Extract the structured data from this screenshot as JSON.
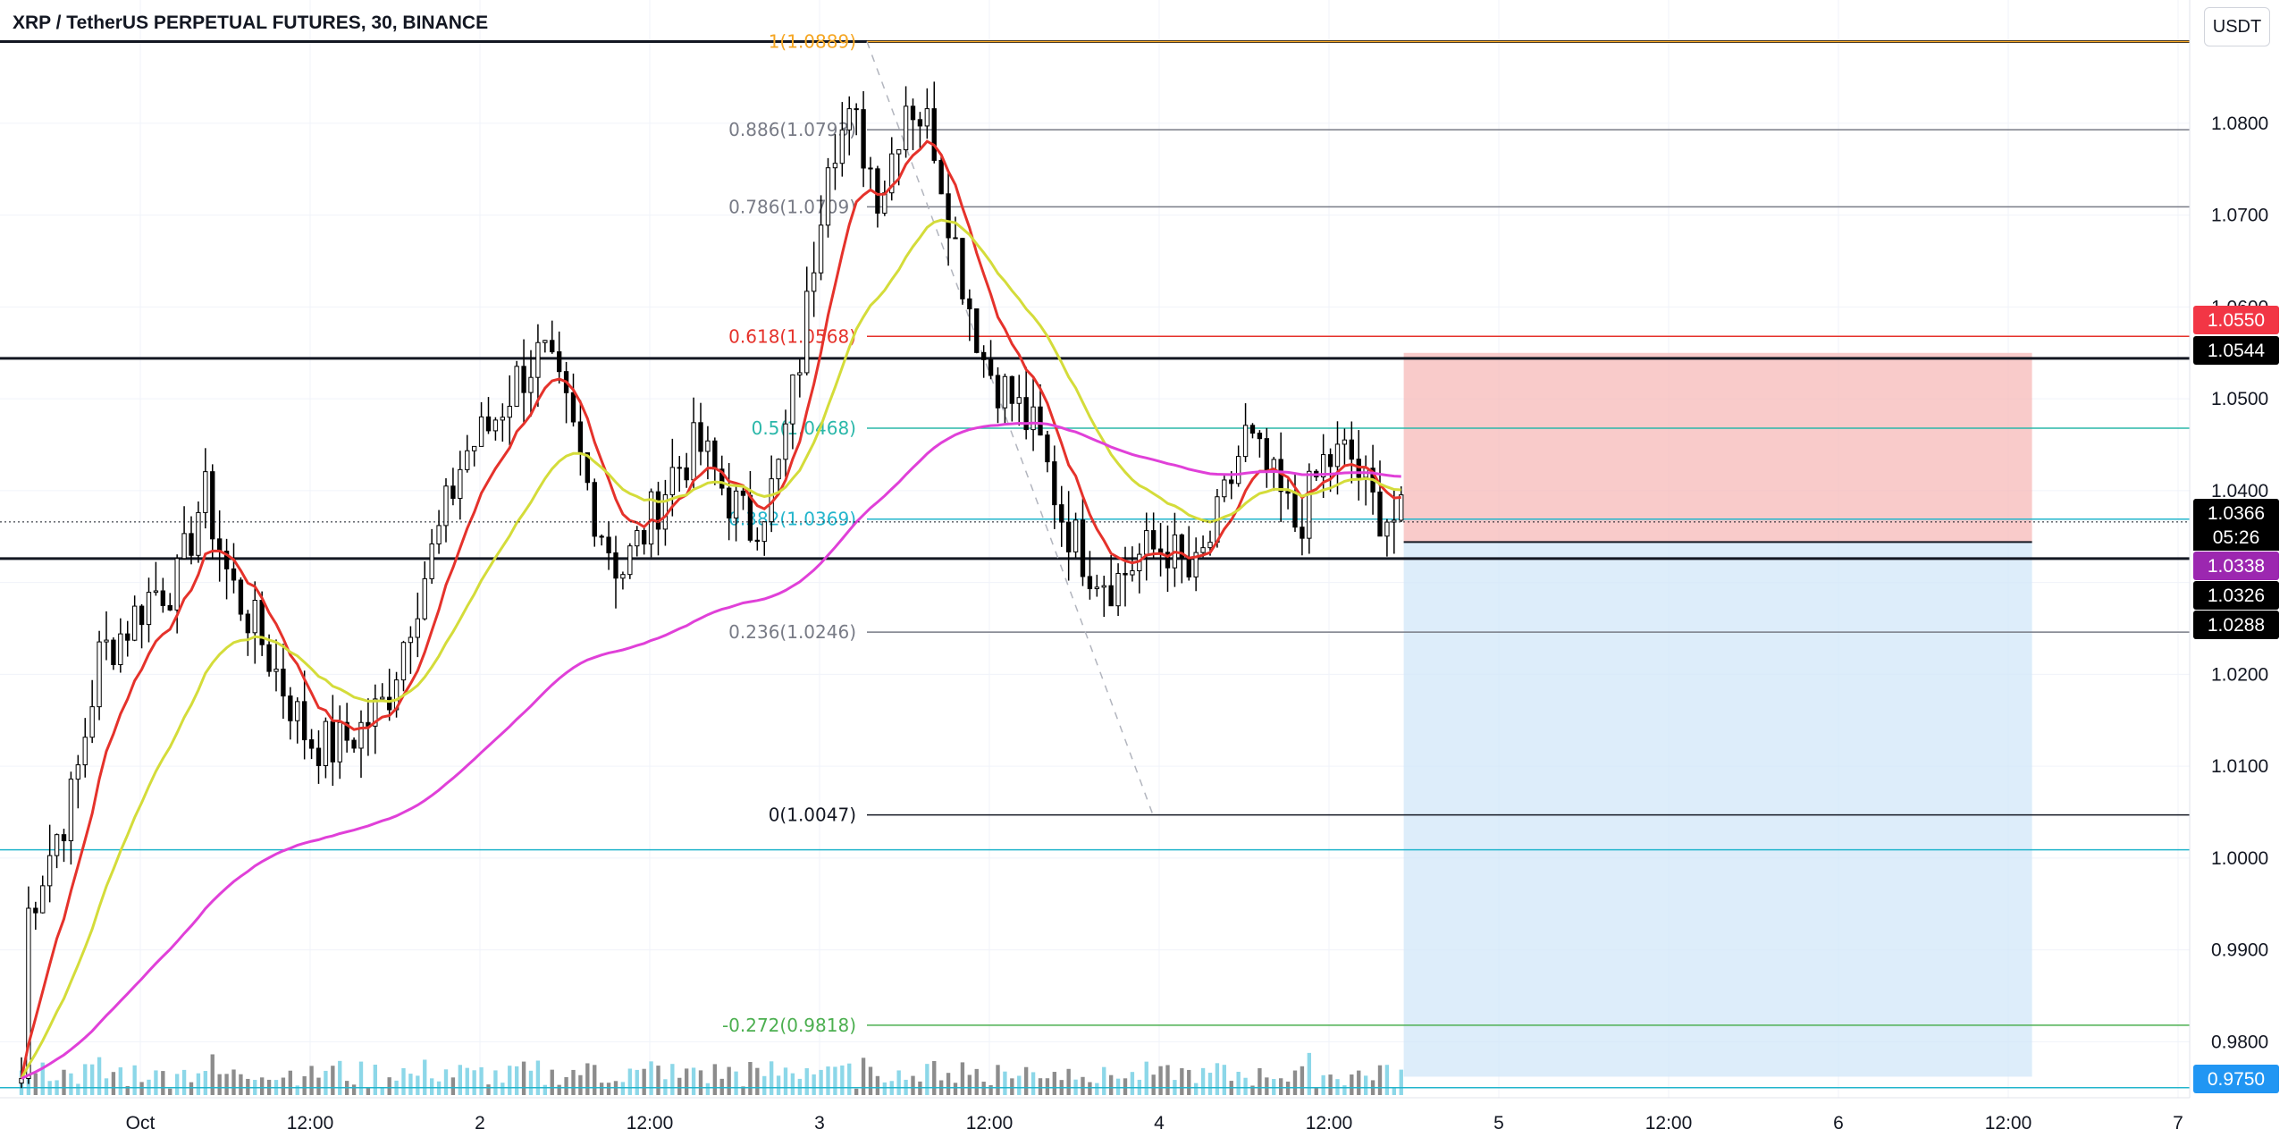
{
  "title": "XRP / TetherUS PERPETUAL FUTURES, 30, BINANCE",
  "unit": "USDT",
  "countdown": "05:26",
  "colors": {
    "ema_fast": "#e5322b",
    "ema_mid": "#d4dc3a",
    "ema_slow": "#e040d8",
    "up": "#ffffff",
    "down": "#000000",
    "volume_up": "#7fd3e6",
    "volume_down": "#808080",
    "stop_zone": "#f7b5b3",
    "target_zone": "#cfe5f8"
  },
  "chart_data": {
    "type": "candlestick",
    "symbol": "XRPUSDT",
    "timeframe": "30",
    "ylim": [
      0.9742,
      1.0905
    ],
    "y_ticks": [
      0.975,
      0.98,
      0.99,
      1.0,
      1.01,
      1.02,
      1.03,
      1.04,
      1.05,
      1.06,
      1.07,
      1.08
    ],
    "y_tick_labels": [
      "",
      "0.9800",
      "0.9900",
      "1.0000",
      "1.0100",
      "1.0200",
      "",
      "1.0400",
      "1.0500",
      "1.0600",
      "1.0700",
      "1.0800"
    ],
    "x_ticks": [
      {
        "t": 0.0,
        "label": "Oct"
      },
      {
        "t": 0.5,
        "label": "12:00"
      },
      {
        "t": 1.0,
        "label": "2"
      },
      {
        "t": 1.5,
        "label": "12:00"
      },
      {
        "t": 2.0,
        "label": "3"
      },
      {
        "t": 2.5,
        "label": "12:00"
      },
      {
        "t": 3.0,
        "label": "4"
      },
      {
        "t": 3.5,
        "label": "12:00"
      },
      {
        "t": 4.0,
        "label": "5"
      },
      {
        "t": 4.5,
        "label": "12:00"
      },
      {
        "t": 5.0,
        "label": "6"
      },
      {
        "t": 5.5,
        "label": "12:00"
      },
      {
        "t": 6.0,
        "label": "7"
      }
    ],
    "candles_start_day": -0.35,
    "candle_step_days": 0.0208333,
    "key_prices": [
      0.992,
      1.0,
      1.007,
      1.022,
      1.025,
      1.029,
      1.03,
      1.04,
      1.03,
      1.025,
      1.019,
      1.013,
      1.012,
      1.014,
      1.017,
      1.027,
      1.035,
      1.044,
      1.047,
      1.052,
      1.055,
      1.048,
      1.038,
      1.031,
      1.036,
      1.042,
      1.045,
      1.04,
      1.036,
      1.041,
      1.056,
      1.078,
      1.08,
      1.072,
      1.083,
      1.079,
      1.065,
      1.054,
      1.05,
      1.046,
      1.037,
      1.032,
      1.03,
      1.033,
      1.034,
      1.03,
      1.037,
      1.046,
      1.041,
      1.036,
      1.043,
      1.044,
      1.038,
      1.0366
    ],
    "fib_levels": [
      {
        "label": "1(1.0889)",
        "price": 1.0889,
        "color": "#f5a623"
      },
      {
        "label": "0.886(1.0793)",
        "price": 1.0793,
        "color": "#787b86"
      },
      {
        "label": "0.786(1.0709)",
        "price": 1.0709,
        "color": "#787b86"
      },
      {
        "label": "0.618(1.0568)",
        "price": 1.0568,
        "color": "#e5322b"
      },
      {
        "label": "0.5(1.0468)",
        "price": 1.0468,
        "color": "#2ab7a9"
      },
      {
        "label": "0.382(1.0369)",
        "price": 1.0369,
        "color": "#22b5cc"
      },
      {
        "label": "0.236(1.0246)",
        "price": 1.0246,
        "color": "#787b86"
      },
      {
        "label": "0(1.0047)",
        "price": 1.0047,
        "color": "#131722"
      },
      {
        "label": "-0.272(0.9818)",
        "price": 0.9818,
        "color": "#4caf50"
      }
    ],
    "horizontal_lines": [
      {
        "price": 1.0889,
        "color": "#131722"
      },
      {
        "price": 1.0544,
        "color": "#131722"
      },
      {
        "price": 1.0326,
        "color": "#131722"
      },
      {
        "price": 1.0009,
        "color": "#22b5cc"
      },
      {
        "price": 0.975,
        "color": "#22b5cc"
      }
    ],
    "position": {
      "type": "long",
      "entry": 1.0344,
      "stop": 1.055,
      "target": 0.975,
      "t_start": 3.72,
      "t_end": 5.57
    },
    "price_labels": [
      {
        "text": "1.0550",
        "bg": "#f23645",
        "fg": "#ffffff"
      },
      {
        "text": "1.0544",
        "bg": "#000000",
        "fg": "#ffffff"
      },
      {
        "text": "1.0366",
        "bg": "#000000",
        "fg": "#ffffff"
      },
      {
        "text": "1.0338",
        "bg": "#9c27b0",
        "fg": "#ffffff"
      },
      {
        "text": "1.0326",
        "bg": "#000000",
        "fg": "#ffffff"
      },
      {
        "text": "1.0288",
        "bg": "#000000",
        "fg": "#ffffff"
      },
      {
        "text": "0.9750",
        "bg": "#2196f3",
        "fg": "#ffffff"
      }
    ]
  }
}
